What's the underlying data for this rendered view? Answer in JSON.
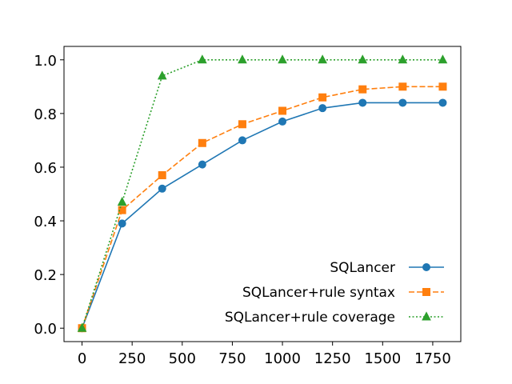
{
  "chart_data": {
    "type": "line",
    "title": "",
    "xlabel": "",
    "ylabel": "",
    "xlim": [
      -90,
      1890
    ],
    "ylim": [
      -0.05,
      1.05
    ],
    "xticks": [
      0,
      250,
      500,
      750,
      1000,
      1250,
      1500,
      1750
    ],
    "yticks": [
      0.0,
      0.2,
      0.4,
      0.6,
      0.8,
      1.0
    ],
    "xtick_labels": [
      "0",
      "250",
      "500",
      "750",
      "1000",
      "1250",
      "1500",
      "1750"
    ],
    "ytick_labels": [
      "0.0",
      "0.2",
      "0.4",
      "0.6",
      "0.8",
      "1.0"
    ],
    "grid": false,
    "legend_position": "lower-right",
    "x": [
      0,
      200,
      400,
      600,
      800,
      1000,
      1200,
      1400,
      1600,
      1800
    ],
    "series": [
      {
        "name": "SQLancer",
        "color": "#1f77b4",
        "line_style": "solid",
        "marker": "circle",
        "values": [
          0.0,
          0.39,
          0.52,
          0.61,
          0.7,
          0.77,
          0.82,
          0.84,
          0.84,
          0.84
        ]
      },
      {
        "name": "SQLancer+rule syntax",
        "color": "#ff7f0e",
        "line_style": "dashed",
        "marker": "square",
        "values": [
          0.0,
          0.44,
          0.57,
          0.69,
          0.76,
          0.81,
          0.86,
          0.89,
          0.9,
          0.9
        ]
      },
      {
        "name": "SQLancer+rule coverage",
        "color": "#2ca02c",
        "line_style": "dotted",
        "marker": "triangle",
        "values": [
          0.0,
          0.47,
          0.94,
          1.0,
          1.0,
          1.0,
          1.0,
          1.0,
          1.0,
          1.0
        ]
      }
    ]
  }
}
